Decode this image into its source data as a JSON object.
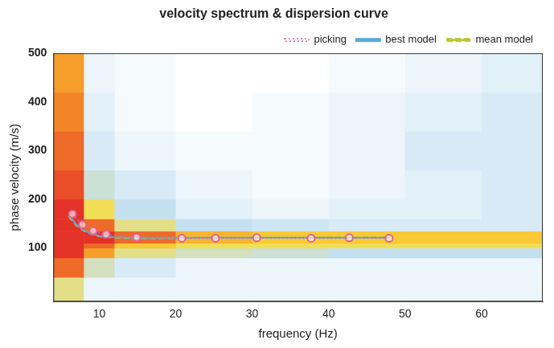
{
  "chart_data": {
    "type": "scatter",
    "title": "velocity spectrum & dispersion curve",
    "x_label": "frequency (Hz)",
    "y_label": "phase velocity (m/s)",
    "xlim": [
      4,
      68
    ],
    "xticks": [
      10,
      20,
      30,
      40,
      50,
      60
    ],
    "ylim": [
      -10,
      500
    ],
    "yticks": [
      100,
      200,
      300,
      400,
      500
    ],
    "grid": false,
    "legend": "top",
    "spectrum": {
      "x_edges": [
        4,
        8,
        12,
        20,
        30,
        40,
        50,
        60,
        68
      ],
      "y_edges": [
        -10,
        40,
        80,
        100,
        110,
        135,
        160,
        200,
        260,
        340,
        420,
        500
      ],
      "values": [
        [
          0.5,
          0.1,
          0.1,
          0.1,
          0.1,
          0.1,
          0.1,
          0.1
        ],
        [
          0.9,
          0.4,
          0.2,
          0.1,
          0.1,
          0.1,
          0.1,
          0.1
        ],
        [
          1.0,
          0.8,
          0.5,
          0.4,
          0.35,
          0.3,
          0.3,
          0.3
        ],
        [
          1.0,
          0.9,
          0.7,
          0.6,
          0.6,
          0.6,
          0.6,
          0.6
        ],
        [
          1.0,
          1.0,
          0.9,
          0.75,
          0.7,
          0.7,
          0.7,
          0.7
        ],
        [
          1.0,
          0.9,
          0.5,
          0.3,
          0.25,
          0.2,
          0.2,
          0.2
        ],
        [
          1.0,
          0.6,
          0.3,
          0.15,
          0.1,
          0.15,
          0.15,
          0.2
        ],
        [
          0.95,
          0.35,
          0.2,
          0.1,
          0.05,
          0.1,
          0.15,
          0.2
        ],
        [
          0.9,
          0.2,
          0.1,
          0.05,
          0.05,
          0.1,
          0.2,
          0.2
        ],
        [
          0.85,
          0.15,
          0.05,
          0.0,
          0.05,
          0.1,
          0.15,
          0.2
        ],
        [
          0.8,
          0.1,
          0.05,
          0.0,
          0.0,
          0.05,
          0.1,
          0.15
        ]
      ]
    },
    "series": [
      {
        "name": "picking",
        "color": "#e0609a",
        "marker": "circle",
        "line_style": "dotted",
        "x": [
          6.5,
          7.8,
          9.2,
          10.9,
          14.9,
          20.8,
          25.2,
          30.6,
          37.7,
          42.7,
          47.9
        ],
        "values": [
          170,
          148,
          135,
          128,
          122,
          120,
          120,
          121,
          120,
          121,
          120
        ]
      },
      {
        "name": "best model",
        "color": "#5aa9d6",
        "marker": "none",
        "line_style": "solid",
        "x": [
          6,
          7,
          8,
          9,
          10,
          12,
          15,
          20,
          25,
          30,
          35,
          40,
          45,
          48
        ],
        "values": [
          168,
          148,
          136,
          129,
          125,
          122,
          121,
          121,
          121,
          121,
          121,
          121,
          121,
          121
        ]
      },
      {
        "name": "mean model",
        "color": "#b8c832",
        "marker": "none",
        "line_style": "dashed",
        "x": [
          6,
          7,
          8,
          9,
          10,
          12,
          15,
          20,
          25,
          30,
          35,
          40,
          45,
          48
        ],
        "values": [
          165,
          146,
          135,
          128,
          124,
          121,
          120,
          120,
          121,
          121,
          121,
          122,
          122,
          122
        ]
      }
    ]
  }
}
